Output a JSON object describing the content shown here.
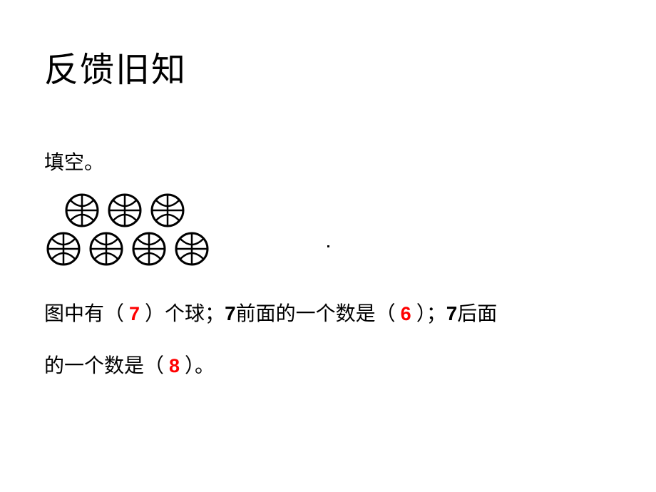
{
  "title": "反馈旧知",
  "prompt": "填空。",
  "balls": {
    "row1_count": 3,
    "row2_count": 4,
    "stroke": "#000000",
    "fill": "#ffffff",
    "size": 50
  },
  "line1": {
    "t1": "图中有（",
    "a1": "7",
    "t2": "）个球；",
    "bold": "7",
    "t3": "前面的一个数是（",
    "a2": "6",
    "t4": "）；",
    "bold2": "7",
    "t5": "后面"
  },
  "line2": {
    "t1": "的一个数是（",
    "a1": "8",
    "t2": "）。"
  },
  "colors": {
    "answer": "#ff0000",
    "text": "#000000",
    "background": "#ffffff"
  },
  "fontsize": {
    "title": 48,
    "body": 28,
    "answer": 27
  }
}
